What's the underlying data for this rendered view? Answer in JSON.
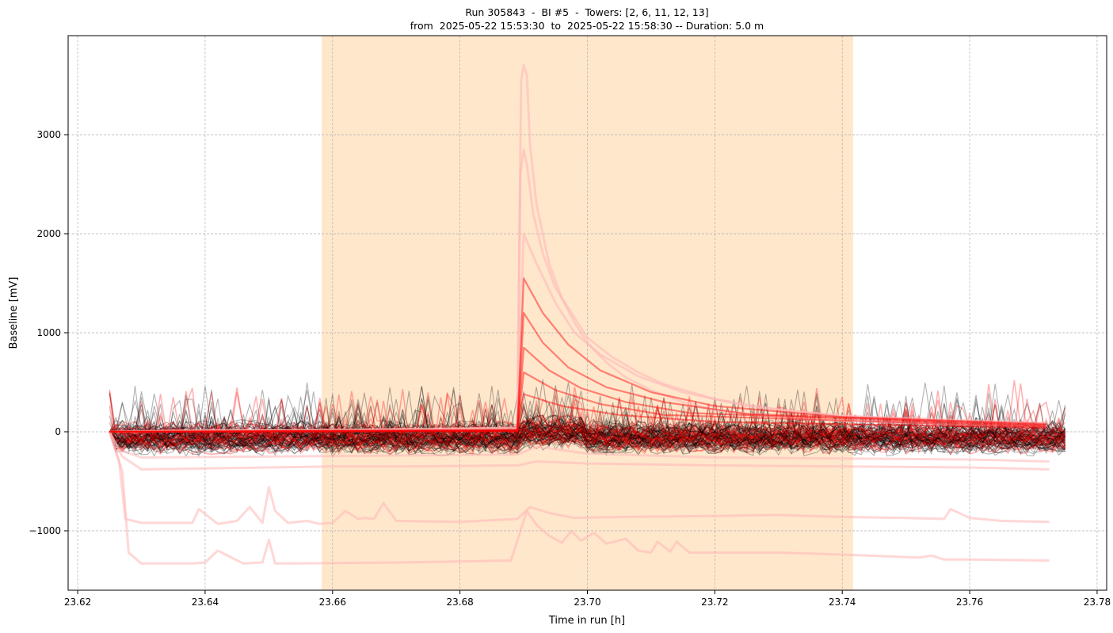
{
  "chart_data": {
    "type": "line",
    "title_line1": "Run 305843  -  BI #5  -  Towers: [2, 6, 11, 12, 13]",
    "title_line2": "from  2025-05-22 15:53:30  to  2025-05-22 15:58:30 -- Duration: 5.0 m",
    "xlabel": "Time in run [h]",
    "ylabel": "Baseline [mV]",
    "xlim": [
      23.6185,
      23.7815
    ],
    "ylim": [
      -1600,
      4000
    ],
    "xticks": [
      23.62,
      23.64,
      23.66,
      23.68,
      23.7,
      23.72,
      23.74,
      23.76,
      23.78
    ],
    "xtick_labels": [
      "23.62",
      "23.64",
      "23.66",
      "23.68",
      "23.70",
      "23.72",
      "23.74",
      "23.76",
      "23.78"
    ],
    "yticks": [
      -1000,
      0,
      1000,
      2000,
      3000
    ],
    "ytick_labels": [
      "−1000",
      "0",
      "1000",
      "2000",
      "3000"
    ],
    "grid": true,
    "highlight_span": {
      "x_start": 23.6583,
      "x_end": 23.7417,
      "color": "#ffe7cc"
    },
    "colors": {
      "red_series": "#ff0000",
      "pink_series": "#ffb6b6",
      "black_series": "#000000"
    },
    "series": [
      {
        "style": "pink",
        "x": [
          23.625,
          23.6265,
          23.6275,
          23.63,
          23.638,
          23.639,
          23.642,
          23.645,
          23.647,
          23.649,
          23.65,
          23.651,
          23.653,
          23.656,
          23.658,
          23.66,
          23.662,
          23.664,
          23.665,
          23.6665,
          23.668,
          23.67,
          23.68,
          23.689,
          23.691,
          23.694,
          23.698,
          23.705,
          23.72,
          23.73,
          23.74,
          23.75,
          23.756,
          23.757,
          23.76,
          23.765,
          23.7725
        ],
        "y": [
          0,
          -300,
          -880,
          -920,
          -920,
          -780,
          -930,
          -900,
          -760,
          -920,
          -560,
          -800,
          -920,
          -900,
          -930,
          -920,
          -800,
          -880,
          -870,
          -880,
          -720,
          -900,
          -910,
          -880,
          -760,
          -820,
          -870,
          -860,
          -850,
          -840,
          -860,
          -870,
          -880,
          -780,
          -870,
          -900,
          -910
        ]
      },
      {
        "style": "pink",
        "x": [
          23.625,
          23.627,
          23.628,
          23.63,
          23.638,
          23.64,
          23.642,
          23.646,
          23.649,
          23.65,
          23.651,
          23.653,
          23.67,
          23.68,
          23.688,
          23.6905,
          23.692,
          23.694,
          23.696,
          23.6975,
          23.699,
          23.701,
          23.703,
          23.706,
          23.708,
          23.71,
          23.711,
          23.713,
          23.714,
          23.716,
          23.72,
          23.73,
          23.74,
          23.752,
          23.754,
          23.756,
          23.76,
          23.7725
        ],
        "y": [
          0,
          -400,
          -1220,
          -1330,
          -1330,
          -1320,
          -1200,
          -1330,
          -1320,
          -1090,
          -1330,
          -1330,
          -1320,
          -1310,
          -1300,
          -800,
          -940,
          -1050,
          -1120,
          -1000,
          -1100,
          -1020,
          -1130,
          -1080,
          -1200,
          -1220,
          -1110,
          -1210,
          -1110,
          -1220,
          -1220,
          -1220,
          -1240,
          -1270,
          -1250,
          -1290,
          -1290,
          -1300
        ]
      },
      {
        "style": "pink",
        "x": [
          23.625,
          23.627,
          23.63,
          23.64,
          23.65,
          23.66,
          23.67,
          23.68,
          23.689,
          23.692,
          23.7,
          23.72,
          23.74,
          23.76,
          23.7725
        ],
        "y": [
          0,
          -250,
          -380,
          -370,
          -360,
          -350,
          -350,
          -345,
          -340,
          -300,
          -320,
          -340,
          -350,
          -360,
          -380
        ]
      },
      {
        "style": "pink",
        "x": [
          23.625,
          23.6265,
          23.63,
          23.65,
          23.67,
          23.689,
          23.692,
          23.7,
          23.72,
          23.74,
          23.76,
          23.7725
        ],
        "y": [
          0,
          -180,
          -260,
          -250,
          -240,
          -230,
          -150,
          -220,
          -260,
          -270,
          -280,
          -300
        ]
      },
      {
        "style": "pink",
        "x": [
          23.625,
          23.64,
          23.66,
          23.689,
          23.6896,
          23.69,
          23.6905,
          23.691,
          23.692,
          23.694,
          23.696,
          23.698,
          23.7,
          23.703,
          23.706,
          23.71,
          23.715,
          23.72,
          23.73,
          23.74,
          23.75,
          23.76,
          23.772
        ],
        "y": [
          0,
          20,
          10,
          40,
          3550,
          3700,
          3600,
          2900,
          2300,
          1700,
          1350,
          1100,
          900,
          700,
          550,
          420,
          300,
          220,
          150,
          110,
          90,
          70,
          60
        ]
      },
      {
        "style": "pink",
        "x": [
          23.625,
          23.66,
          23.689,
          23.6895,
          23.69,
          23.6905,
          23.6915,
          23.693,
          23.695,
          23.6975,
          23.7,
          23.704,
          23.708,
          23.712,
          23.72,
          23.73,
          23.74,
          23.755,
          23.772
        ],
        "y": [
          0,
          20,
          40,
          2600,
          2850,
          2700,
          2200,
          1800,
          1450,
          1200,
          950,
          750,
          600,
          480,
          330,
          220,
          160,
          110,
          80
        ]
      },
      {
        "style": "pink",
        "x": [
          23.625,
          23.689,
          23.69,
          23.692,
          23.695,
          23.698,
          23.702,
          23.708,
          23.715,
          23.725,
          23.74,
          23.772
        ],
        "y": [
          0,
          30,
          2000,
          1700,
          1300,
          1000,
          780,
          560,
          400,
          260,
          160,
          90
        ]
      },
      {
        "style": "red",
        "x": [
          23.625,
          23.689,
          23.69,
          23.693,
          23.697,
          23.702,
          23.71,
          23.72,
          23.74,
          23.772
        ],
        "y": [
          0,
          20,
          1550,
          1200,
          880,
          620,
          400,
          260,
          150,
          80
        ]
      },
      {
        "style": "red",
        "x": [
          23.625,
          23.689,
          23.69,
          23.693,
          23.697,
          23.703,
          23.712,
          23.725,
          23.772
        ],
        "y": [
          0,
          10,
          1200,
          900,
          650,
          450,
          300,
          180,
          70
        ]
      },
      {
        "style": "red",
        "x": [
          23.625,
          23.689,
          23.69,
          23.694,
          23.699,
          23.706,
          23.716,
          23.772
        ],
        "y": [
          0,
          15,
          850,
          620,
          440,
          300,
          190,
          60
        ]
      },
      {
        "style": "red",
        "x": [
          23.625,
          23.689,
          23.69,
          23.695,
          23.702,
          23.712,
          23.772
        ],
        "y": [
          0,
          10,
          600,
          420,
          280,
          170,
          50
        ]
      },
      {
        "style": "red",
        "x": [
          23.625,
          23.689,
          23.69,
          23.696,
          23.705,
          23.72,
          23.772
        ],
        "y": [
          0,
          5,
          380,
          260,
          170,
          100,
          40
        ]
      }
    ]
  }
}
